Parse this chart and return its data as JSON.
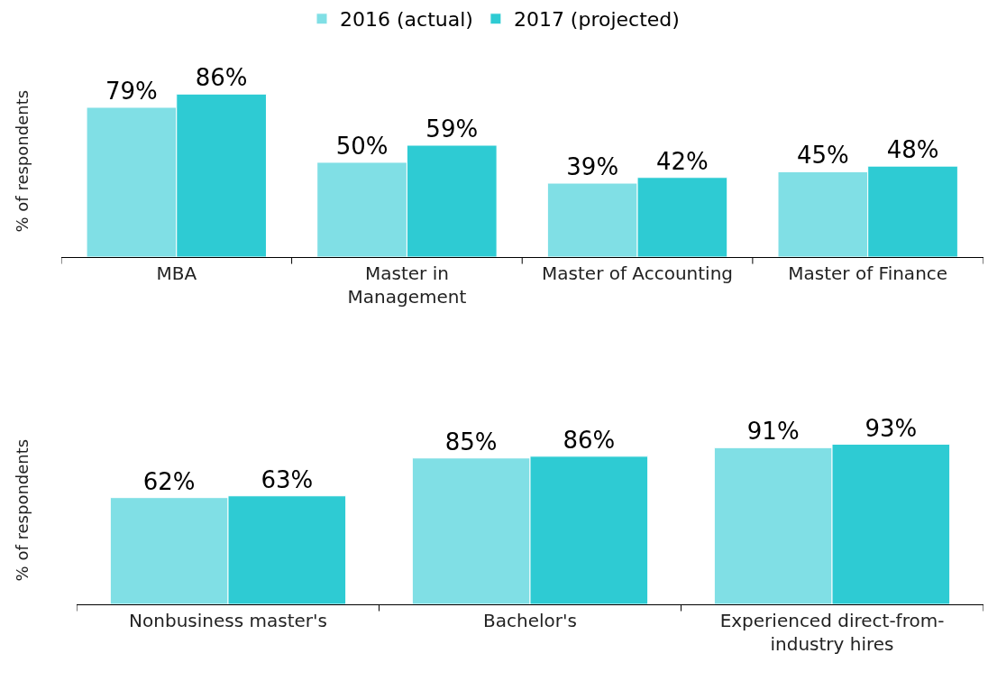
{
  "chart_data": [
    {
      "type": "bar",
      "ylabel": "% of respondents",
      "legend": "top",
      "categories": [
        "MBA",
        "Master in\nManagement",
        "Master of Accounting",
        "Master of Finance"
      ],
      "series": [
        {
          "name": "2016 (actual)",
          "color": "#80dfe5",
          "values": [
            79,
            50,
            39,
            45
          ],
          "value_labels": [
            "79%",
            "50%",
            "39%",
            "45%"
          ]
        },
        {
          "name": "2017 (projected)",
          "color": "#2ecbd3",
          "values": [
            86,
            59,
            42,
            48
          ],
          "value_labels": [
            "86%",
            "59%",
            "42%",
            "48%"
          ]
        }
      ]
    },
    {
      "type": "bar",
      "ylabel": "% of respondents",
      "categories": [
        "Nonbusiness master's",
        "Bachelor's",
        "Experienced direct-from-\nindustry hires"
      ],
      "series": [
        {
          "color": "#80dfe5",
          "values": [
            62,
            85,
            91
          ],
          "value_labels": [
            "62%",
            "85%",
            "91%"
          ]
        },
        {
          "color": "#2ecbd3",
          "values": [
            63,
            86,
            93
          ],
          "value_labels": [
            "63%",
            "86%",
            "93%"
          ]
        }
      ]
    }
  ]
}
